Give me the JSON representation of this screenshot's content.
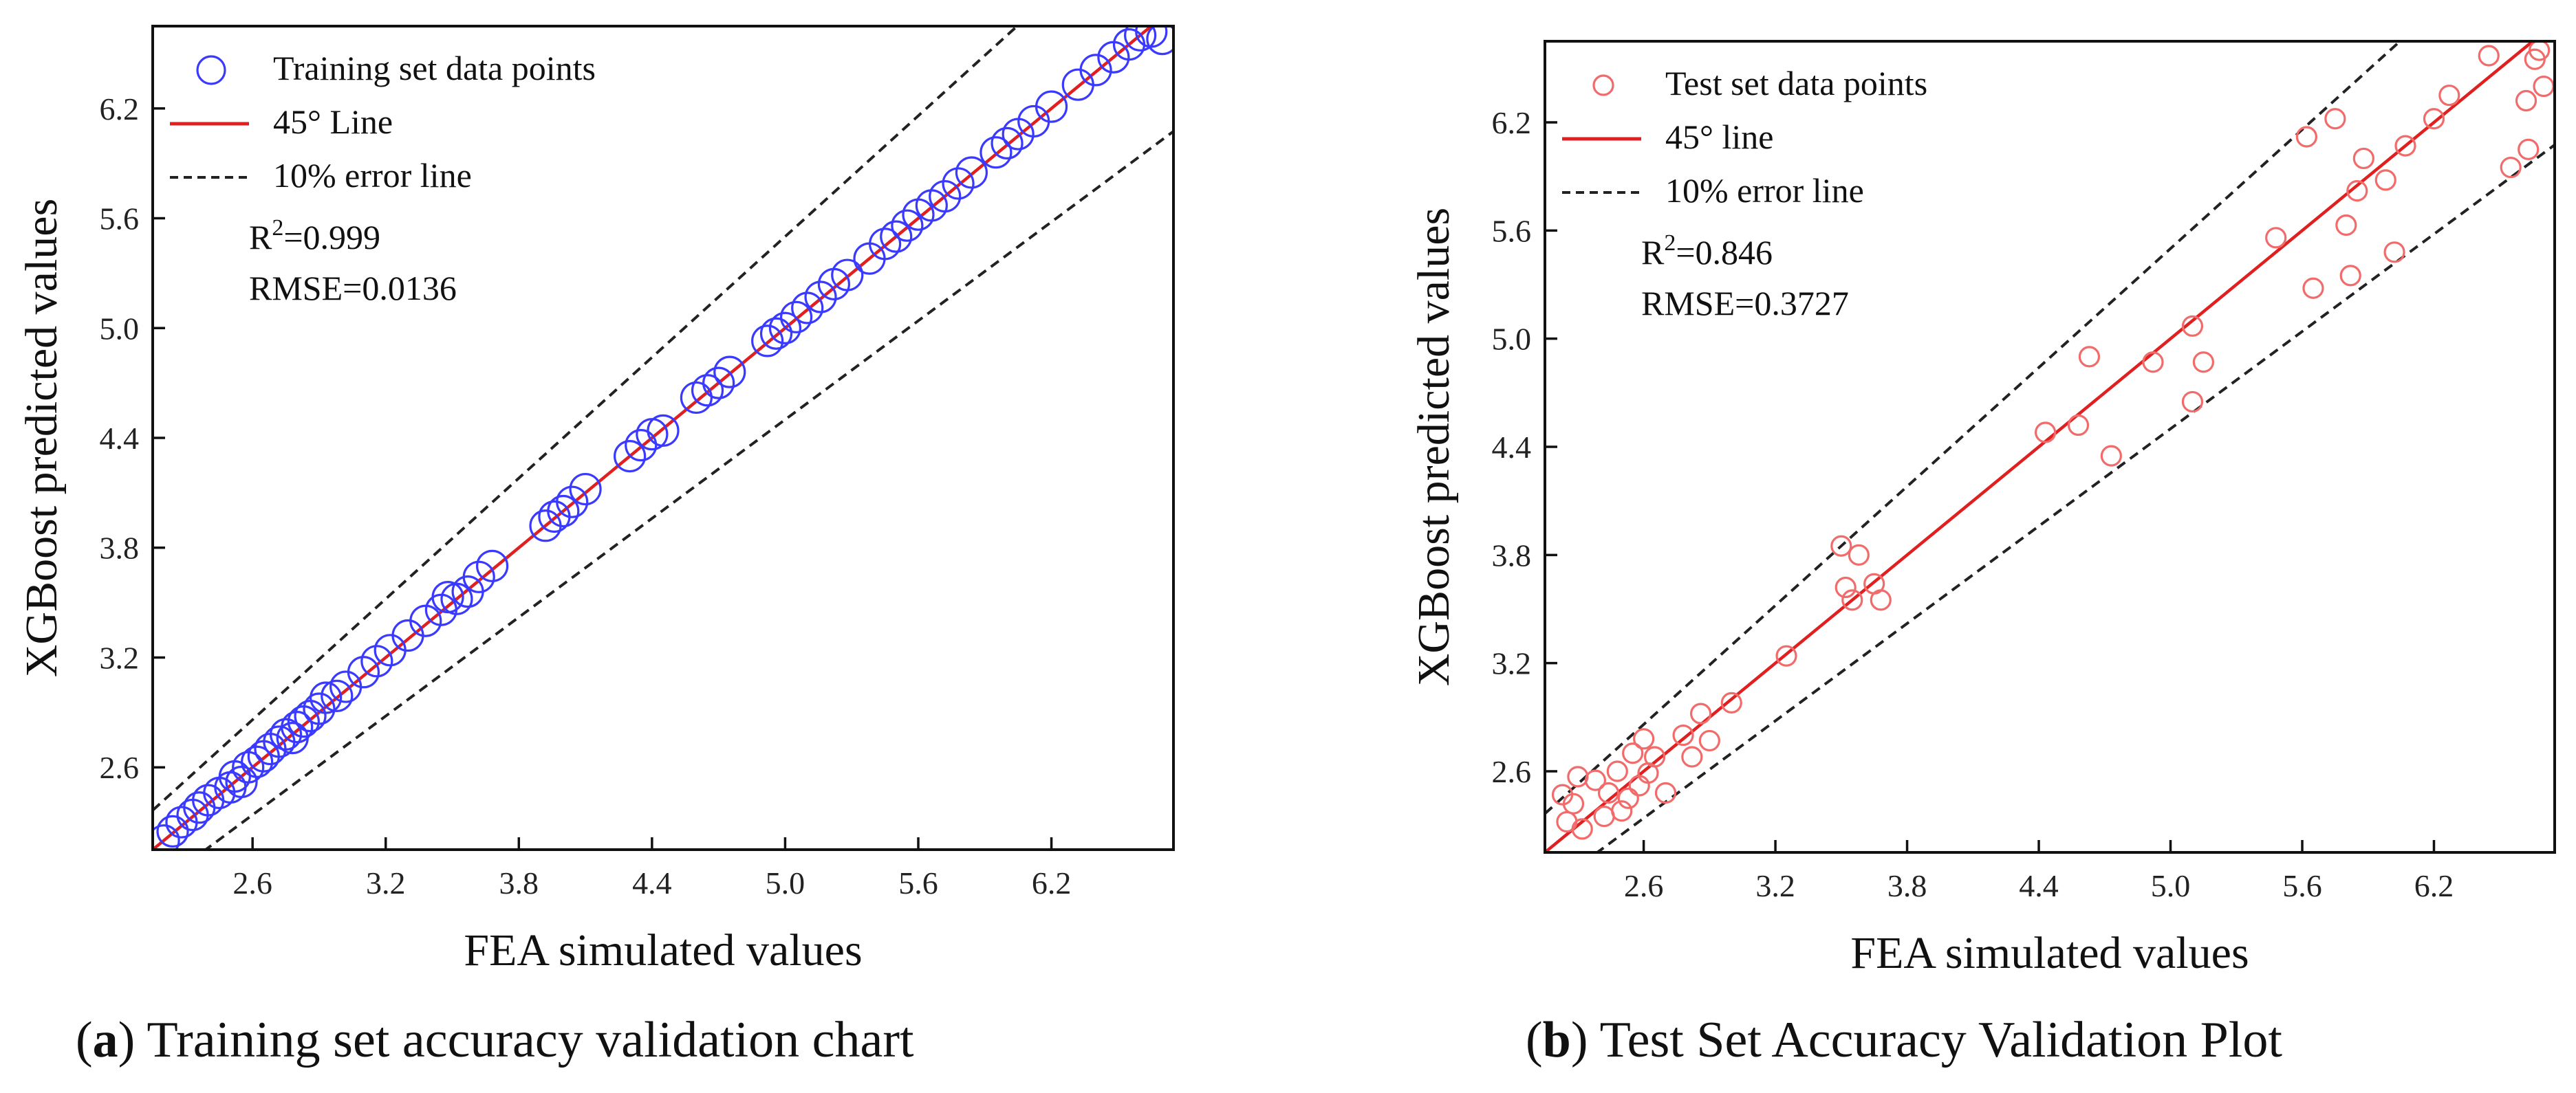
{
  "charts": [
    {
      "id": "a",
      "caption_letter": "a",
      "caption_text": "Training set accuracy validation chart",
      "color": "#3a3aff",
      "legend": {
        "points": "Training set data points",
        "line45": "45° Line",
        "error": "10% error line",
        "r2_label": "R",
        "r2_sup": "2",
        "r2_value": "=0.999",
        "rmse": "RMSE=0.0136"
      }
    },
    {
      "id": "b",
      "caption_letter": "b",
      "caption_text": "Test Set Accuracy Validation Plot",
      "color": "#f26b6b",
      "legend": {
        "points": "Test set data points",
        "line45": "45° line",
        "error": "10% error line",
        "r2_label": "R",
        "r2_sup": "2",
        "r2_value": "=0.846",
        "rmse": "RMSE=0.3727"
      }
    }
  ],
  "chart_data": [
    {
      "type": "scatter",
      "title": "",
      "xlabel": "FEA simulated values",
      "ylabel": "XGBoost predicted values",
      "xlim": [
        2.15,
        6.75
      ],
      "ylim": [
        2.15,
        6.65
      ],
      "xticks": [
        2.6,
        3.2,
        3.8,
        4.4,
        5.0,
        5.6,
        6.2
      ],
      "yticks": [
        2.6,
        3.2,
        3.8,
        4.4,
        5.0,
        5.6,
        6.2
      ],
      "tick_labels": [
        "2.6",
        "3.2",
        "3.8",
        "4.4",
        "5.0",
        "5.6",
        "6.2"
      ],
      "grid": false,
      "legend_position": "top-left",
      "reference_lines": [
        {
          "name": "45° Line",
          "style": "solid",
          "color": "#e02020",
          "slope": 1.0
        },
        {
          "name": "10% error line",
          "style": "dashed",
          "color": "#222222",
          "slope": 1.1
        },
        {
          "name": "10% error line",
          "style": "dashed",
          "color": "#222222",
          "slope": 0.9
        }
      ],
      "series": [
        {
          "name": "Training set data points",
          "marker": "open-circle",
          "color": "#3a3aff",
          "points": [
            [
              2.2,
              2.2
            ],
            [
              2.24,
              2.25
            ],
            [
              2.28,
              2.3
            ],
            [
              2.33,
              2.34
            ],
            [
              2.36,
              2.38
            ],
            [
              2.4,
              2.42
            ],
            [
              2.45,
              2.46
            ],
            [
              2.5,
              2.49
            ],
            [
              2.52,
              2.55
            ],
            [
              2.55,
              2.52
            ],
            [
              2.58,
              2.6
            ],
            [
              2.62,
              2.63
            ],
            [
              2.65,
              2.66
            ],
            [
              2.68,
              2.7
            ],
            [
              2.72,
              2.74
            ],
            [
              2.75,
              2.78
            ],
            [
              2.78,
              2.76
            ],
            [
              2.8,
              2.82
            ],
            [
              2.83,
              2.85
            ],
            [
              2.86,
              2.88
            ],
            [
              2.9,
              2.92
            ],
            [
              2.93,
              2.98
            ],
            [
              2.98,
              2.99
            ],
            [
              3.02,
              3.04
            ],
            [
              3.1,
              3.12
            ],
            [
              3.16,
              3.18
            ],
            [
              3.22,
              3.24
            ],
            [
              3.3,
              3.32
            ],
            [
              3.38,
              3.4
            ],
            [
              3.45,
              3.46
            ],
            [
              3.48,
              3.53
            ],
            [
              3.52,
              3.52
            ],
            [
              3.57,
              3.56
            ],
            [
              3.62,
              3.64
            ],
            [
              3.68,
              3.7
            ],
            [
              3.92,
              3.92
            ],
            [
              3.96,
              3.97
            ],
            [
              4.0,
              4.0
            ],
            [
              4.04,
              4.05
            ],
            [
              4.1,
              4.12
            ],
            [
              4.3,
              4.3
            ],
            [
              4.35,
              4.36
            ],
            [
              4.4,
              4.42
            ],
            [
              4.45,
              4.44
            ],
            [
              4.6,
              4.62
            ],
            [
              4.65,
              4.66
            ],
            [
              4.7,
              4.7
            ],
            [
              4.75,
              4.76
            ],
            [
              4.92,
              4.93
            ],
            [
              4.96,
              4.97
            ],
            [
              5.0,
              5.0
            ],
            [
              5.05,
              5.06
            ],
            [
              5.1,
              5.11
            ],
            [
              5.16,
              5.17
            ],
            [
              5.22,
              5.24
            ],
            [
              5.28,
              5.29
            ],
            [
              5.38,
              5.38
            ],
            [
              5.45,
              5.46
            ],
            [
              5.5,
              5.5
            ],
            [
              5.55,
              5.56
            ],
            [
              5.6,
              5.62
            ],
            [
              5.66,
              5.67
            ],
            [
              5.72,
              5.72
            ],
            [
              5.78,
              5.79
            ],
            [
              5.84,
              5.85
            ],
            [
              5.95,
              5.96
            ],
            [
              6.0,
              6.01
            ],
            [
              6.05,
              6.06
            ],
            [
              6.12,
              6.13
            ],
            [
              6.2,
              6.21
            ],
            [
              6.32,
              6.33
            ],
            [
              6.4,
              6.41
            ],
            [
              6.48,
              6.48
            ],
            [
              6.55,
              6.55
            ],
            [
              6.6,
              6.6
            ],
            [
              6.65,
              6.62
            ],
            [
              6.7,
              6.58
            ]
          ]
        }
      ],
      "annotations": [
        "R2=0.999",
        "RMSE=0.0136"
      ]
    },
    {
      "type": "scatter",
      "title": "",
      "xlabel": "FEA simulated values",
      "ylabel": "XGBoost predicted values",
      "xlim": [
        2.15,
        6.75
      ],
      "ylim": [
        2.15,
        6.65
      ],
      "xticks": [
        2.6,
        3.2,
        3.8,
        4.4,
        5.0,
        5.6,
        6.2
      ],
      "yticks": [
        2.6,
        3.2,
        3.8,
        4.4,
        5.0,
        5.6,
        6.2
      ],
      "tick_labels": [
        "2.6",
        "3.2",
        "3.8",
        "4.4",
        "5.0",
        "5.6",
        "6.2"
      ],
      "grid": false,
      "legend_position": "top-left",
      "reference_lines": [
        {
          "name": "45° line",
          "style": "solid",
          "color": "#e02020",
          "slope": 1.0
        },
        {
          "name": "10% error line",
          "style": "dashed",
          "color": "#222222",
          "slope": 1.1
        },
        {
          "name": "10% error line",
          "style": "dashed",
          "color": "#222222",
          "slope": 0.9
        }
      ],
      "series": [
        {
          "name": "Test set data points",
          "marker": "open-circle",
          "color": "#f26b6b",
          "points": [
            [
              2.23,
              2.47
            ],
            [
              2.25,
              2.32
            ],
            [
              2.28,
              2.42
            ],
            [
              2.3,
              2.57
            ],
            [
              2.32,
              2.28
            ],
            [
              2.38,
              2.55
            ],
            [
              2.42,
              2.35
            ],
            [
              2.44,
              2.48
            ],
            [
              2.48,
              2.6
            ],
            [
              2.5,
              2.38
            ],
            [
              2.53,
              2.45
            ],
            [
              2.55,
              2.7
            ],
            [
              2.58,
              2.52
            ],
            [
              2.6,
              2.78
            ],
            [
              2.62,
              2.59
            ],
            [
              2.65,
              2.68
            ],
            [
              2.7,
              2.48
            ],
            [
              2.78,
              2.8
            ],
            [
              2.82,
              2.68
            ],
            [
              2.86,
              2.92
            ],
            [
              2.9,
              2.77
            ],
            [
              3.0,
              2.98
            ],
            [
              3.25,
              3.24
            ],
            [
              3.5,
              3.85
            ],
            [
              3.52,
              3.62
            ],
            [
              3.55,
              3.55
            ],
            [
              3.58,
              3.8
            ],
            [
              3.65,
              3.64
            ],
            [
              3.68,
              3.55
            ],
            [
              4.43,
              4.48
            ],
            [
              4.58,
              4.52
            ],
            [
              4.63,
              4.9
            ],
            [
              4.73,
              4.35
            ],
            [
              4.92,
              4.87
            ],
            [
              5.1,
              5.07
            ],
            [
              5.1,
              4.65
            ],
            [
              5.15,
              4.87
            ],
            [
              5.48,
              5.56
            ],
            [
              5.62,
              6.12
            ],
            [
              5.65,
              5.28
            ],
            [
              5.75,
              6.22
            ],
            [
              5.8,
              5.63
            ],
            [
              5.82,
              5.35
            ],
            [
              5.85,
              5.82
            ],
            [
              5.88,
              6.0
            ],
            [
              5.98,
              5.88
            ],
            [
              6.02,
              5.48
            ],
            [
              6.07,
              6.07
            ],
            [
              6.2,
              6.22
            ],
            [
              6.27,
              6.35
            ],
            [
              6.45,
              6.57
            ],
            [
              6.55,
              5.95
            ],
            [
              6.62,
              6.32
            ],
            [
              6.63,
              6.05
            ],
            [
              6.66,
              6.55
            ],
            [
              6.68,
              6.6
            ],
            [
              6.7,
              6.4
            ]
          ]
        }
      ],
      "annotations": [
        "R2=0.846",
        "RMSE=0.3727"
      ]
    }
  ]
}
